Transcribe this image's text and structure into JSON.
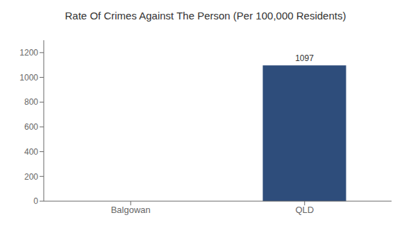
{
  "chart_data": {
    "type": "bar",
    "title": "Rate Of Crimes Against The Person (Per 100,000 Residents)",
    "categories": [
      "Balgowan",
      "QLD"
    ],
    "values": [
      0,
      1097
    ],
    "color": "#2e4d7b",
    "ylim": [
      0,
      1300
    ],
    "yticks": [
      0,
      200,
      400,
      600,
      800,
      1000,
      1200
    ],
    "grid": false,
    "data_labels": true
  }
}
